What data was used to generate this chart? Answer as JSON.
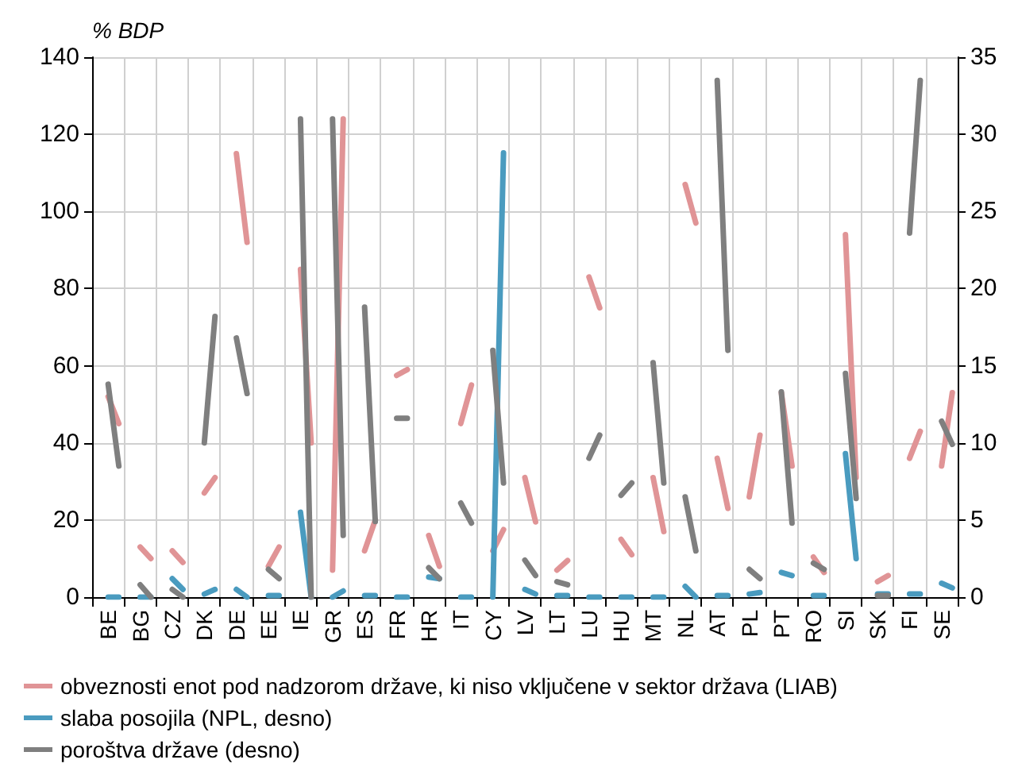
{
  "chart_data": {
    "type": "line",
    "ylabel": "% BDP",
    "categories": [
      null,
      "BE",
      null,
      null,
      "BG",
      null,
      null,
      "CZ",
      null,
      null,
      "DK",
      null,
      null,
      "DE",
      null,
      null,
      "EE",
      null,
      null,
      "IE",
      null,
      null,
      "GR",
      null,
      null,
      "ES",
      null,
      null,
      "FR",
      null,
      null,
      "HR",
      null,
      null,
      "IT",
      null,
      null,
      "CY",
      null,
      null,
      "LV",
      null,
      null,
      "LT",
      null,
      null,
      "LU",
      null,
      null,
      "HU",
      null,
      null,
      "MT",
      null,
      null,
      "NL",
      null,
      null,
      "AT",
      null,
      null,
      "PL",
      null,
      null,
      "PT",
      null,
      null,
      "RO",
      null,
      null,
      "SI",
      null,
      null,
      "SK",
      null,
      null,
      "FI",
      null,
      null,
      "SE",
      null
    ],
    "ylim": [
      0,
      140
    ],
    "yticks": [
      0,
      20,
      40,
      60,
      80,
      100,
      120,
      140
    ],
    "y2lim": [
      0,
      35
    ],
    "y2ticks": [
      0,
      5,
      10,
      15,
      20,
      25,
      30,
      35
    ],
    "series": [
      {
        "name": "obveznosti enot pod nadzorom države, ki niso vključene v sektor država (LIAB)",
        "color": "#e09496",
        "values": [
          null,
          52,
          45,
          null,
          13,
          10,
          null,
          12,
          9,
          null,
          27,
          31,
          null,
          115,
          92,
          null,
          8,
          13,
          null,
          85,
          40,
          null,
          7,
          124,
          null,
          12,
          20,
          null,
          57.5,
          59,
          null,
          16,
          8,
          null,
          45,
          55,
          null,
          12,
          17.5,
          null,
          31,
          19.5,
          null,
          7,
          9.5,
          null,
          83,
          75,
          null,
          15,
          11,
          null,
          31,
          17,
          null,
          107,
          97,
          null,
          36,
          23,
          null,
          26,
          42,
          null,
          53,
          34,
          null,
          10.4,
          6.4,
          null,
          94,
          31,
          null,
          4,
          5.6,
          null,
          36,
          43,
          null,
          34,
          53
        ]
      },
      {
        "name": "slaba posojila (NPL, desno)",
        "color": "#4a9bbf",
        "axis": "y2",
        "values": [
          null,
          0,
          0,
          null,
          0,
          0,
          null,
          1.2,
          0.5,
          null,
          0.2,
          0.5,
          null,
          0.5,
          0,
          null,
          0.1,
          0.1,
          null,
          5.5,
          0,
          null,
          0,
          0.4,
          null,
          0.1,
          0.1,
          null,
          0,
          0,
          null,
          1.3,
          1.2,
          null,
          0,
          0,
          null,
          0,
          28.8,
          null,
          0.5,
          0.2,
          null,
          0.1,
          0.1,
          null,
          0,
          0,
          null,
          0,
          0,
          null,
          0,
          0,
          null,
          0.7,
          0,
          null,
          0.1,
          0.1,
          null,
          0.2,
          0.3,
          null,
          1.6,
          1.4,
          null,
          0.1,
          0.1,
          null,
          9.3,
          2.5,
          null,
          0.2,
          0.2,
          null,
          0.2,
          0.2,
          null,
          0.9,
          0.6
        ]
      },
      {
        "name": "poroštva države (desno)",
        "color": "#7f7f7f",
        "axis": "y2",
        "values": [
          null,
          13.8,
          8.5,
          null,
          0.8,
          0,
          null,
          0.5,
          0,
          null,
          10,
          18.2,
          null,
          16.8,
          13.2,
          null,
          1.8,
          1.2,
          null,
          31,
          0,
          null,
          31,
          4,
          null,
          18.8,
          4.9,
          null,
          11.6,
          11.6,
          null,
          1.9,
          1.2,
          null,
          6.1,
          4.8,
          null,
          16,
          7.4,
          null,
          2.4,
          1.4,
          null,
          1,
          0.8,
          null,
          9,
          10.5,
          null,
          6.6,
          7.4,
          null,
          15.2,
          7.4,
          null,
          6.5,
          3,
          null,
          33.5,
          16,
          null,
          1.8,
          1.2,
          null,
          13.3,
          4.8,
          null,
          2.2,
          1.8,
          null,
          14.5,
          6.4,
          null,
          0.1,
          0.1,
          null,
          23.6,
          33.5,
          null,
          11.4,
          9.9
        ]
      }
    ],
    "grid": true,
    "legend": "bottom",
    "marker": "none",
    "line_style": "solid"
  }
}
